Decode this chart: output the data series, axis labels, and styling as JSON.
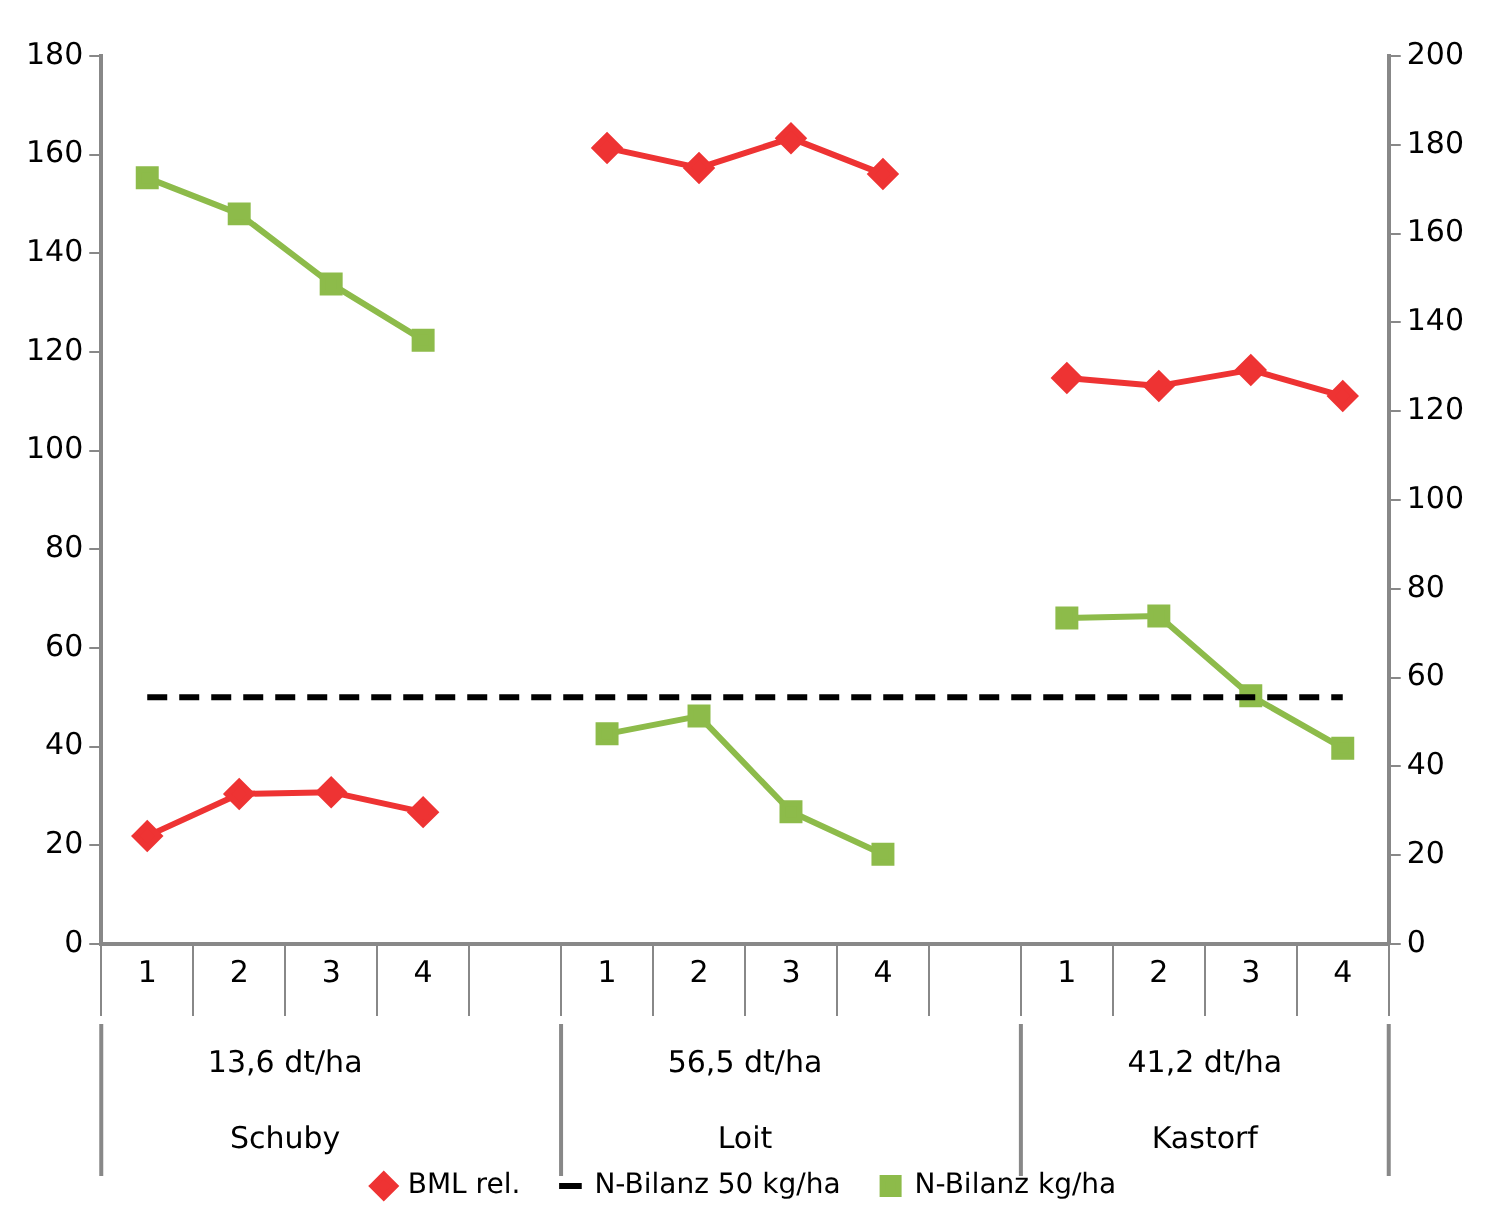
{
  "chart_data": {
    "type": "line",
    "categories": [
      "1",
      "2",
      "3",
      "4",
      null,
      "1",
      "2",
      "3",
      "4",
      null,
      "1",
      "2",
      "3",
      "4"
    ],
    "series": [
      {
        "name": "BML rel.",
        "color": "#ee3333",
        "axis": "y2",
        "marker": "diamond",
        "line_style": "solid",
        "values": [
          24.3,
          33.8,
          34.2,
          29.7,
          null,
          179.3,
          174.8,
          181.5,
          173.4,
          null,
          127.5,
          125.7,
          129.3,
          123.4
        ]
      },
      {
        "name": "N-Bilanz 50 kg/ha",
        "color": "#000000",
        "marker": "none",
        "line_style": "dashed",
        "values": [
          50,
          50,
          50,
          50,
          50,
          50,
          50,
          50,
          50,
          50,
          50,
          50,
          50,
          50
        ]
      },
      {
        "name": "N-Bilanz kg/ha",
        "color": "#8dbb4a",
        "marker": "square",
        "line_style": "solid",
        "values": [
          155.3,
          148,
          133.8,
          122.4,
          null,
          42.6,
          46.2,
          26.8,
          18.2,
          null,
          66.1,
          66.5,
          50.3,
          39.7
        ]
      }
    ],
    "ylim": [
      0,
      180
    ],
    "yticks": [
      0,
      20,
      40,
      60,
      80,
      100,
      120,
      140,
      160,
      180
    ],
    "y2lim": [
      0,
      200
    ],
    "y2ticks": [
      0,
      20,
      40,
      60,
      80,
      100,
      120,
      140,
      160,
      180,
      200
    ],
    "annotations": [
      "13,6 dt/ha",
      "Schuby",
      "56,5 dt/ha",
      "Loit",
      "41,2 dt/ha",
      "Kastorf"
    ],
    "grid": false,
    "legend": "bottom"
  }
}
